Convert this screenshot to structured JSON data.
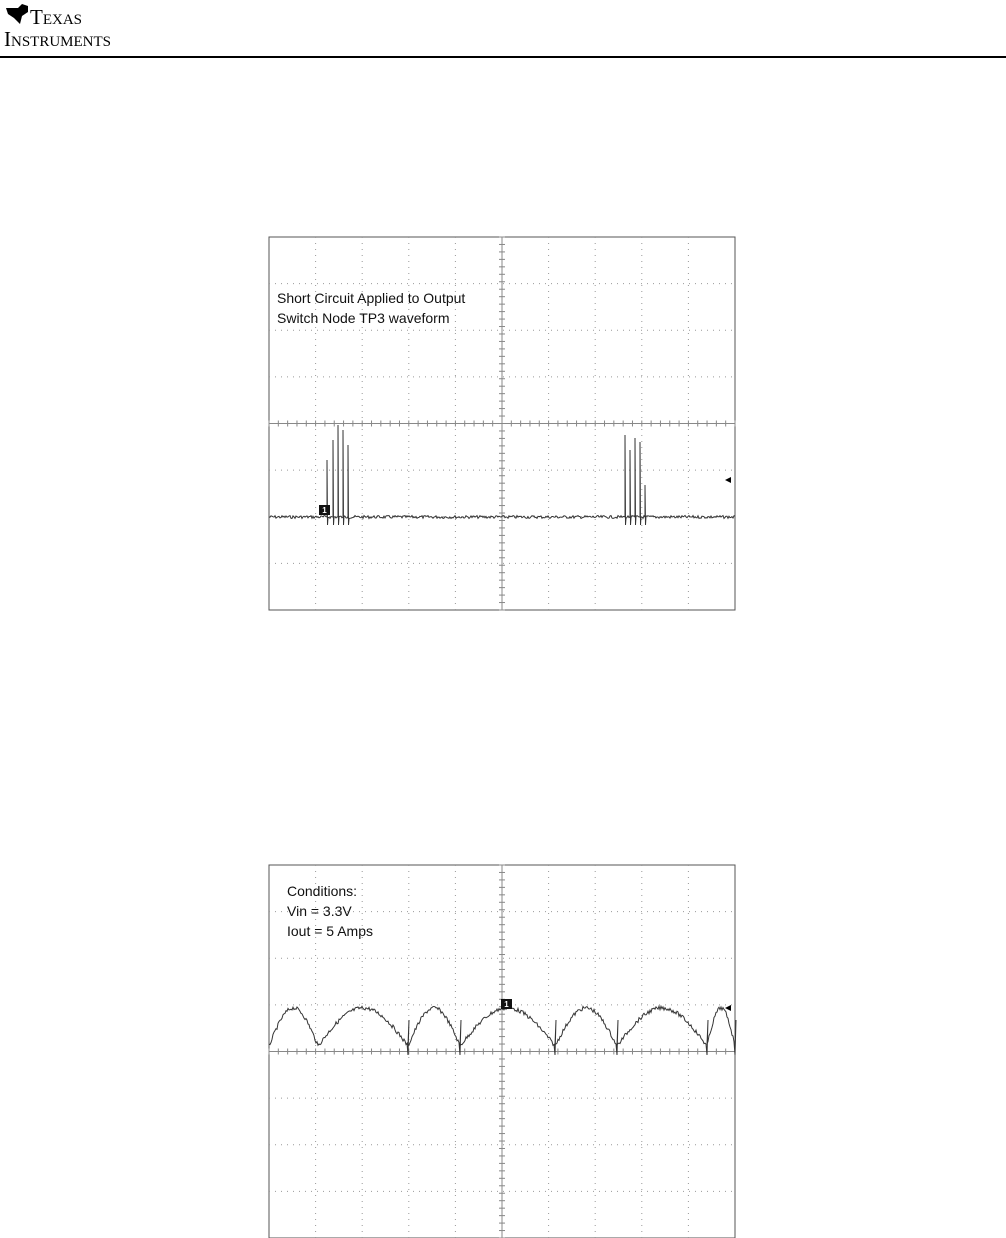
{
  "header": {
    "logo_line1": "Texas",
    "logo_line2": "Instruments"
  },
  "figures": [
    {
      "annotation": [
        "Short Circuit Applied to Output",
        "Switch Node TP3 waveform"
      ],
      "marker": "1"
    },
    {
      "annotation": [
        "Conditions:",
        "Vin = 3.3V",
        "Iout = 5 Amps"
      ],
      "marker": "1"
    }
  ]
}
